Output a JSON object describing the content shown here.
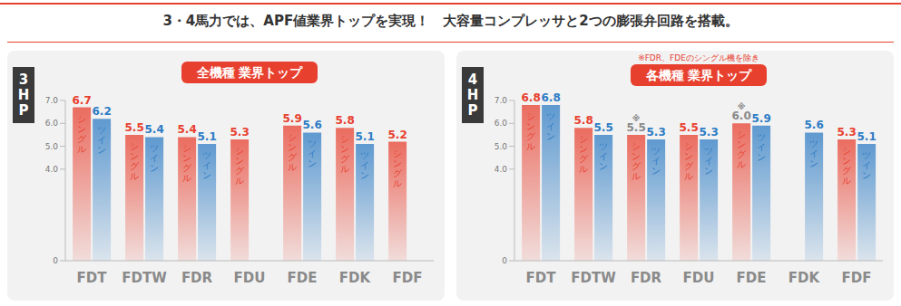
{
  "title": "3・4馬力では、APF値業界トップを実現！　大容量コンプレッサと2つの膨張弁回路を搭載。",
  "chart_data": [
    {
      "type": "bar",
      "title": "3HP",
      "annotations": [
        "全機種 業界トップ"
      ],
      "categories": [
        "FDT",
        "FDTW",
        "FDR",
        "FDU",
        "FDE",
        "FDK",
        "FDF"
      ],
      "series": [
        {
          "name": "シングル",
          "color": "#e8402f",
          "values": [
            6.7,
            5.5,
            5.4,
            5.3,
            5.9,
            5.8,
            5.2
          ]
        },
        {
          "name": "ツイン",
          "color": "#2e7cc4",
          "values": [
            6.2,
            5.4,
            5.1,
            null,
            5.6,
            5.1,
            null
          ]
        }
      ],
      "ylim": [
        0,
        7
      ],
      "yticks": [
        0,
        {
          "value": 4,
          "label": "4.0"
        },
        {
          "value": 5,
          "label": "5.0"
        },
        {
          "value": 6,
          "label": "6.0"
        },
        {
          "value": 7,
          "label": "7.0"
        }
      ],
      "grid": false,
      "data_labels": true
    },
    {
      "type": "bar",
      "title": "4HP",
      "annotations": [
        "各機種 業界トップ",
        "※FDR、FDEのシングル機を除き"
      ],
      "categories": [
        "FDT",
        "FDTW",
        "FDR",
        "FDU",
        "FDE",
        "FDK",
        "FDF"
      ],
      "series": [
        {
          "name": "シングル",
          "color": "#e8402f",
          "values": [
            6.8,
            5.8,
            5.5,
            5.5,
            6.0,
            null,
            5.3
          ],
          "value_labels": [
            "6.8",
            "5.8",
            "※\n5.5",
            "5.5",
            "※\n6.0",
            null,
            "5.3"
          ]
        },
        {
          "name": "ツイン",
          "color": "#2e7cc4",
          "values": [
            6.8,
            5.5,
            5.3,
            5.3,
            5.9,
            5.6,
            5.1
          ]
        }
      ],
      "ylim": [
        0,
        7
      ],
      "yticks": [
        0,
        {
          "value": 4,
          "label": "4.0"
        },
        {
          "value": 5,
          "label": "5.0"
        },
        {
          "value": 6,
          "label": "6.0"
        },
        {
          "value": 7,
          "label": "7.0"
        }
      ],
      "grid": false,
      "data_labels": true
    }
  ]
}
